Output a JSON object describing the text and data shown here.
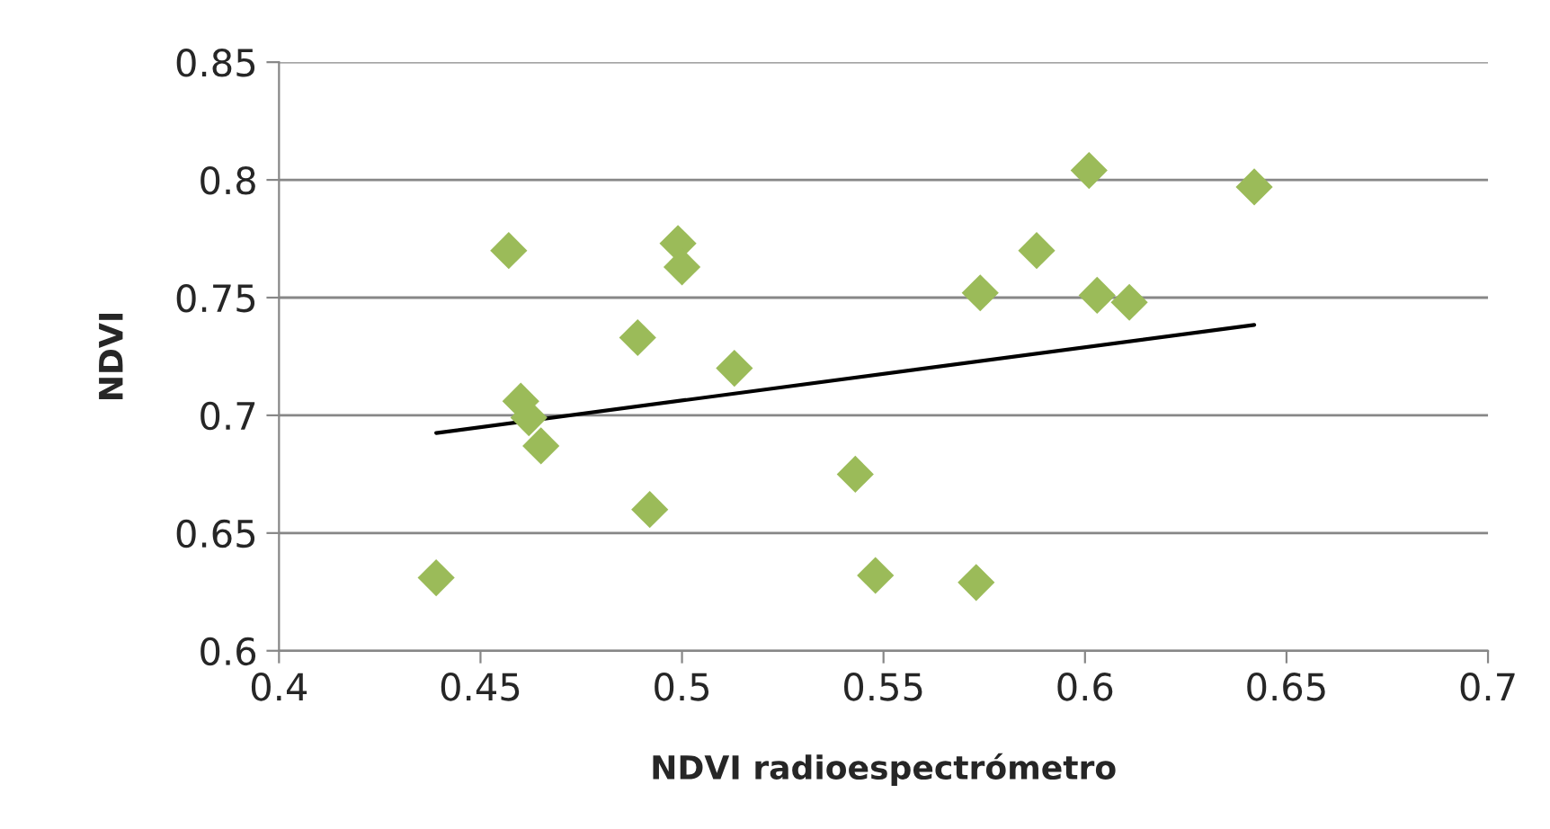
{
  "chart_data": {
    "type": "scatter",
    "xlabel": "NDVI radioespectrómetro",
    "ylabel": "NDVI",
    "xlim": [
      0.4,
      0.7
    ],
    "xticks": [
      0.4,
      0.45,
      0.5,
      0.55,
      0.6,
      0.65,
      0.7
    ],
    "ylim": [
      0.6,
      0.85
    ],
    "yticks": [
      0.6,
      0.65,
      0.7,
      0.75,
      0.8,
      0.85
    ],
    "grid": "y",
    "series": [
      {
        "marker": "diamond",
        "color": "#9bbb59",
        "x": [
          0.439,
          0.457,
          0.46,
          0.462,
          0.465,
          0.489,
          0.492,
          0.499,
          0.5,
          0.513,
          0.543,
          0.548,
          0.573,
          0.574,
          0.588,
          0.601,
          0.603,
          0.611,
          0.642
        ],
        "values": [
          0.631,
          0.77,
          0.706,
          0.699,
          0.687,
          0.733,
          0.66,
          0.773,
          0.763,
          0.72,
          0.675,
          0.632,
          0.629,
          0.752,
          0.77,
          0.804,
          0.751,
          0.748,
          0.797
        ]
      },
      {
        "type": "line",
        "marker": "none",
        "color": "#000000",
        "x": [
          0.439,
          0.642
        ],
        "values": [
          0.6925,
          0.7384
        ]
      }
    ]
  }
}
